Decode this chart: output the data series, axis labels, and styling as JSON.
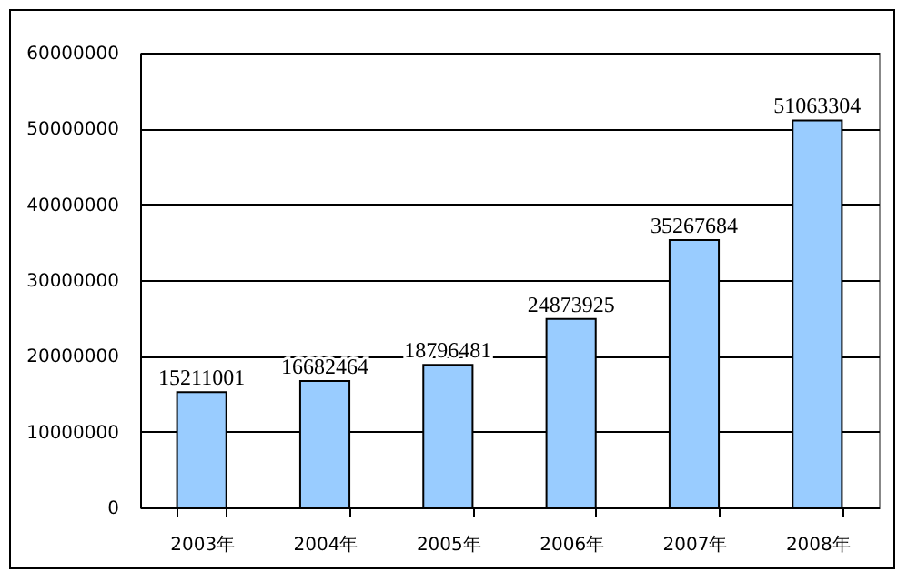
{
  "chart_data": {
    "type": "bar",
    "categories": [
      "2003年",
      "2004年",
      "2005年",
      "2006年",
      "2007年",
      "2008年"
    ],
    "values": [
      15211001,
      16682464,
      18796481,
      24873925,
      35267684,
      51063304
    ],
    "color": "#99ccff",
    "ylim": [
      0,
      60000000
    ],
    "yticks": [
      0,
      10000000,
      20000000,
      30000000,
      40000000,
      50000000,
      60000000
    ],
    "grid": "y",
    "data_labels": true
  }
}
